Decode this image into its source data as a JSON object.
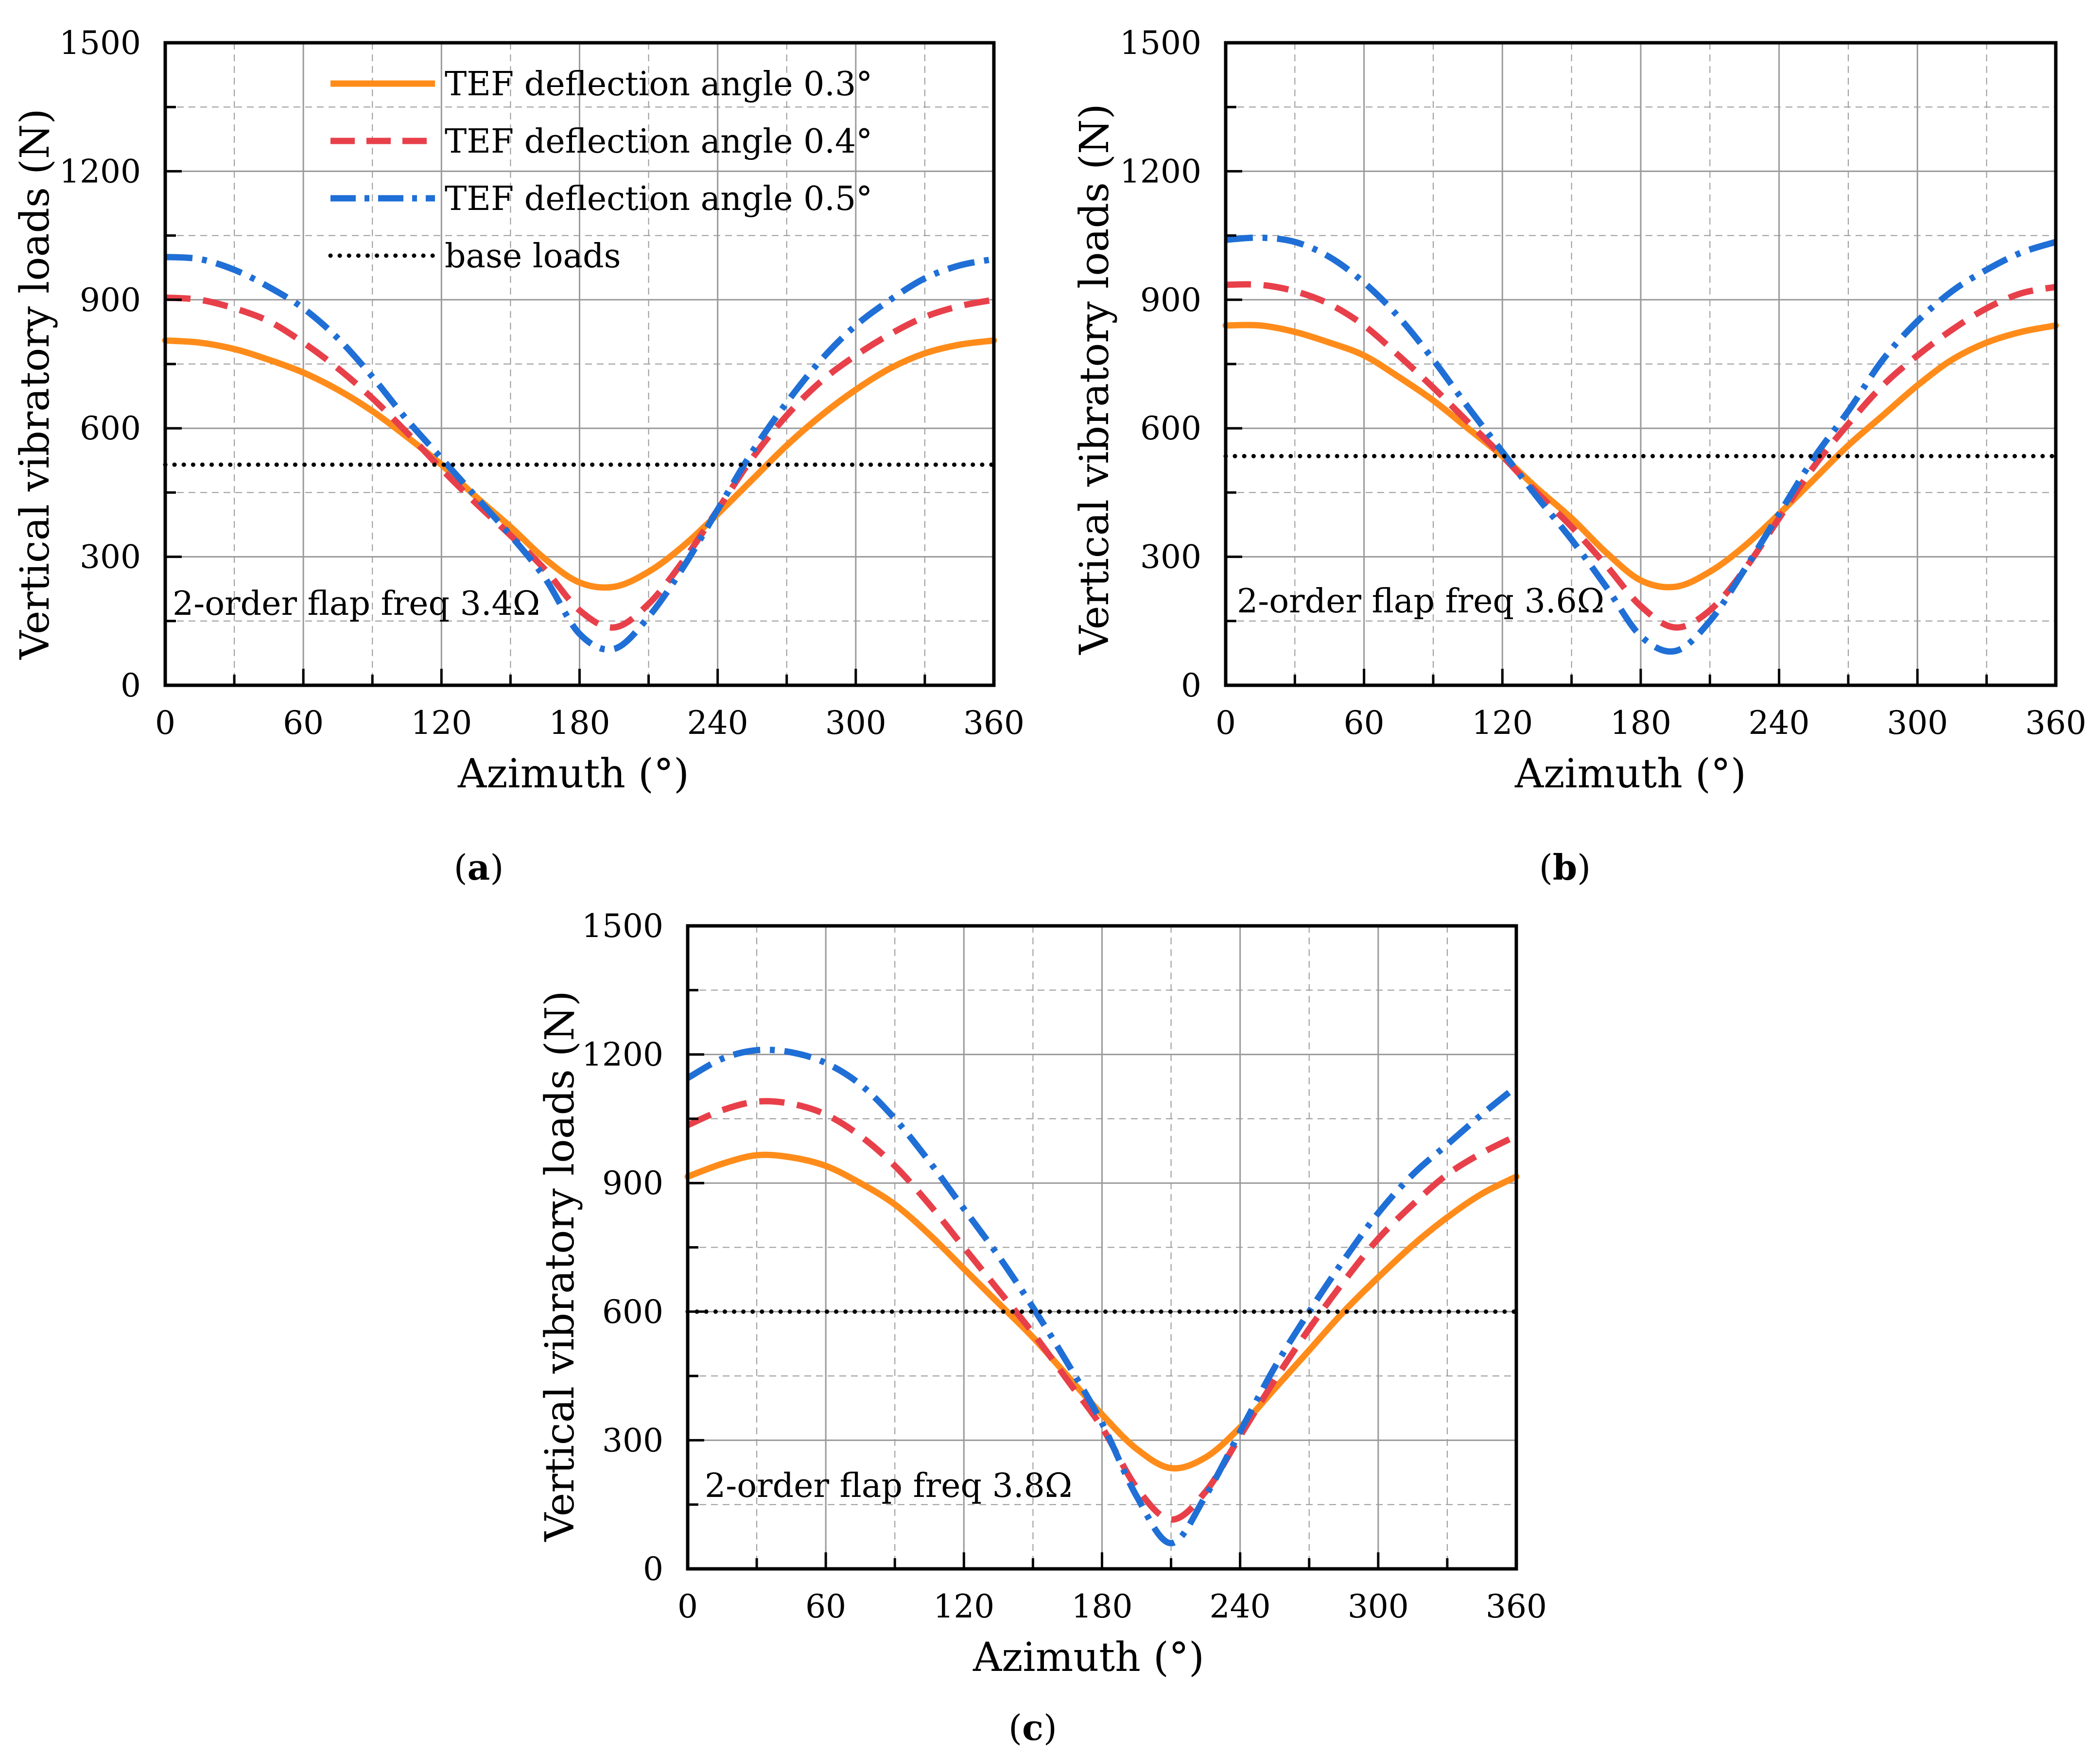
{
  "colors": {
    "tef_03": "#ff8c1a",
    "tef_04": "#e8404a",
    "tef_05": "#1f6fd6",
    "base": "#000000",
    "grid": "#9a9a9a"
  },
  "legend": {
    "tef_03": "TEF deflection angle 0.3°",
    "tef_04": "TEF deflection angle 0.4°",
    "tef_05": "TEF deflection angle 0.5°",
    "base": "base loads"
  },
  "chart_data": [
    {
      "panel": "a",
      "type": "line",
      "caption": "a",
      "annotation": "2-order flap freq 3.4Ω",
      "xlabel": "Azimuth (°)",
      "ylabel": "Vertical vibratory loads (N)",
      "xlim": [
        0,
        360
      ],
      "ylim": [
        0,
        1500
      ],
      "xticks": [
        0,
        60,
        120,
        180,
        240,
        300,
        360
      ],
      "yticks": [
        0,
        300,
        600,
        900,
        1200,
        1500
      ],
      "x": [
        0,
        15,
        30,
        45,
        60,
        75,
        90,
        105,
        120,
        135,
        150,
        165,
        180,
        195,
        210,
        225,
        240,
        255,
        270,
        285,
        300,
        315,
        330,
        345,
        360
      ],
      "series": [
        {
          "name": "TEF deflection angle 0.3°",
          "key": "tef_03",
          "values": [
            805,
            800,
            785,
            760,
            730,
            690,
            640,
            580,
            515,
            440,
            370,
            295,
            240,
            230,
            265,
            325,
            400,
            480,
            560,
            630,
            690,
            740,
            775,
            795,
            805
          ]
        },
        {
          "name": "TEF deflection angle 0.4°",
          "key": "tef_04",
          "values": [
            905,
            900,
            880,
            850,
            800,
            740,
            670,
            590,
            505,
            425,
            350,
            270,
            175,
            135,
            190,
            290,
            410,
            530,
            630,
            710,
            770,
            820,
            860,
            885,
            900
          ]
        },
        {
          "name": "TEF deflection angle 0.5°",
          "key": "tef_05",
          "values": [
            1000,
            995,
            970,
            930,
            880,
            810,
            720,
            620,
            530,
            440,
            350,
            250,
            120,
            85,
            160,
            275,
            410,
            545,
            660,
            760,
            840,
            900,
            950,
            980,
            995
          ]
        },
        {
          "name": "base loads",
          "key": "base",
          "values": [
            515,
            515,
            515,
            515,
            515,
            515,
            515,
            515,
            515,
            515,
            515,
            515,
            515,
            515,
            515,
            515,
            515,
            515,
            515,
            515,
            515,
            515,
            515,
            515,
            515
          ]
        }
      ]
    },
    {
      "panel": "b",
      "type": "line",
      "caption": "b",
      "annotation": "2-order flap freq 3.6Ω",
      "xlabel": "Azimuth (°)",
      "ylabel": "Vertical vibratory loads (N)",
      "xlim": [
        0,
        360
      ],
      "ylim": [
        0,
        1500
      ],
      "xticks": [
        0,
        60,
        120,
        180,
        240,
        300,
        360
      ],
      "yticks": [
        0,
        300,
        600,
        900,
        1200,
        1500
      ],
      "x": [
        0,
        15,
        30,
        45,
        60,
        75,
        90,
        105,
        120,
        135,
        150,
        165,
        180,
        195,
        210,
        225,
        240,
        255,
        270,
        285,
        300,
        315,
        330,
        345,
        360
      ],
      "series": [
        {
          "name": "TEF deflection angle 0.3°",
          "key": "tef_03",
          "values": [
            840,
            840,
            825,
            800,
            770,
            720,
            665,
            600,
            535,
            460,
            390,
            310,
            245,
            230,
            265,
            325,
            400,
            480,
            560,
            630,
            700,
            760,
            800,
            825,
            840
          ]
        },
        {
          "name": "TEF deflection angle 0.4°",
          "key": "tef_04",
          "values": [
            935,
            935,
            920,
            890,
            840,
            770,
            695,
            615,
            535,
            450,
            370,
            280,
            185,
            135,
            175,
            270,
            390,
            510,
            610,
            700,
            770,
            830,
            880,
            915,
            930
          ]
        },
        {
          "name": "TEF deflection angle 0.5°",
          "key": "tef_05",
          "values": [
            1040,
            1045,
            1035,
            1000,
            940,
            860,
            760,
            650,
            545,
            440,
            340,
            230,
            115,
            80,
            150,
            270,
            400,
            530,
            640,
            760,
            850,
            920,
            970,
            1010,
            1035
          ]
        },
        {
          "name": "base loads",
          "key": "base",
          "values": [
            535,
            535,
            535,
            535,
            535,
            535,
            535,
            535,
            535,
            535,
            535,
            535,
            535,
            535,
            535,
            535,
            535,
            535,
            535,
            535,
            535,
            535,
            535,
            535,
            535
          ]
        }
      ]
    },
    {
      "panel": "c",
      "type": "line",
      "caption": "c",
      "annotation": "2-order flap freq 3.8Ω",
      "xlabel": "Azimuth (°)",
      "ylabel": "Vertical vibratory loads (N)",
      "xlim": [
        0,
        360
      ],
      "ylim": [
        0,
        1500
      ],
      "xticks": [
        0,
        60,
        120,
        180,
        240,
        300,
        360
      ],
      "yticks": [
        0,
        300,
        600,
        900,
        1200,
        1500
      ],
      "x": [
        0,
        15,
        30,
        45,
        60,
        75,
        90,
        105,
        120,
        135,
        150,
        165,
        180,
        195,
        210,
        225,
        240,
        255,
        270,
        285,
        300,
        315,
        330,
        345,
        360
      ],
      "series": [
        {
          "name": "TEF deflection angle 0.3°",
          "key": "tef_03",
          "values": [
            915,
            945,
            965,
            960,
            940,
            900,
            850,
            780,
            700,
            620,
            540,
            450,
            360,
            280,
            235,
            260,
            330,
            420,
            510,
            600,
            680,
            755,
            820,
            875,
            915
          ]
        },
        {
          "name": "TEF deflection angle 0.4°",
          "key": "tef_04",
          "values": [
            1035,
            1070,
            1090,
            1085,
            1060,
            1010,
            940,
            850,
            750,
            650,
            550,
            440,
            330,
            190,
            115,
            180,
            310,
            440,
            560,
            670,
            770,
            850,
            920,
            970,
            1010
          ]
        },
        {
          "name": "TEF deflection angle 0.5°",
          "key": "tef_05",
          "values": [
            1145,
            1190,
            1210,
            1205,
            1180,
            1130,
            1050,
            950,
            840,
            730,
            610,
            480,
            340,
            170,
            60,
            170,
            320,
            470,
            600,
            720,
            830,
            920,
            990,
            1060,
            1125
          ]
        },
        {
          "name": "base loads",
          "key": "base",
          "values": [
            600,
            600,
            600,
            600,
            600,
            600,
            600,
            600,
            600,
            600,
            600,
            600,
            600,
            600,
            600,
            600,
            600,
            600,
            600,
            600,
            600,
            600,
            600,
            600,
            600
          ]
        }
      ]
    }
  ]
}
